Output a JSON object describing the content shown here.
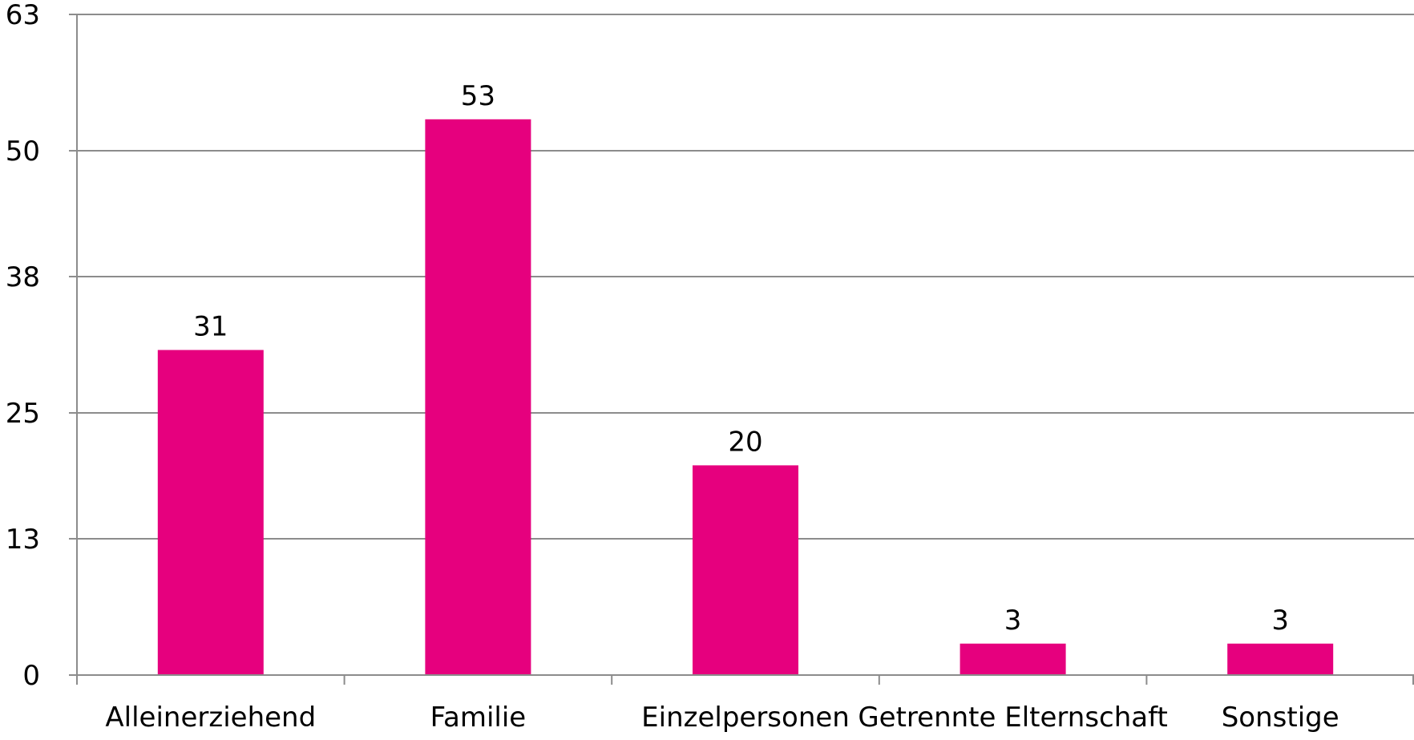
{
  "chart_data": {
    "type": "bar",
    "categories": [
      "Alleinerziehend",
      "Familie",
      "Einzelpersonen",
      "Getrennte Elternschaft",
      "Sonstige"
    ],
    "values": [
      31,
      53,
      20,
      3,
      3
    ],
    "value_labels": [
      "31",
      "53",
      "20",
      "3",
      "3"
    ],
    "yticks": [
      0,
      13,
      25,
      38,
      50,
      63
    ],
    "ytick_labels": [
      "0",
      "13",
      "25",
      "38",
      "50",
      "63"
    ],
    "ylim": [
      0,
      63
    ],
    "grid": true,
    "colors": {
      "bar": "#e6007e",
      "grid": "#8c8c8c",
      "axis": "#8c8c8c",
      "text": "#000000"
    }
  }
}
